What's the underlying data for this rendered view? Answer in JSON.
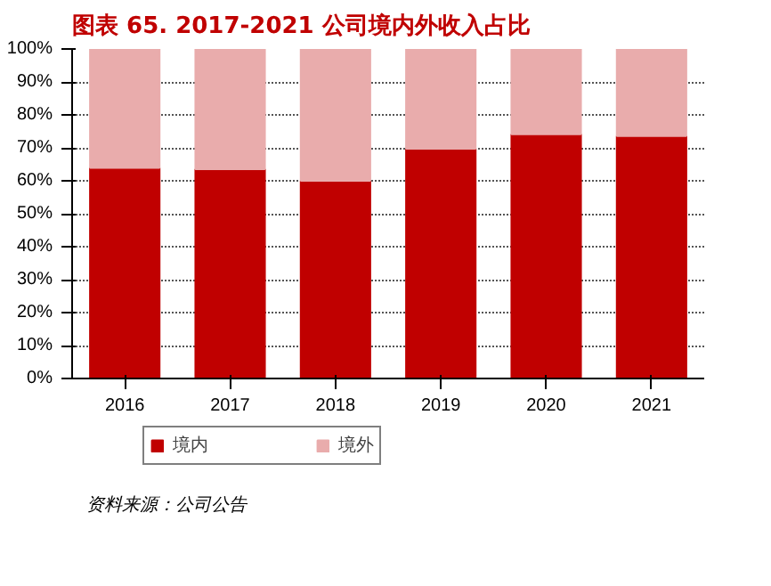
{
  "chart_data": {
    "type": "bar",
    "stacked": true,
    "title": "图表 65. 2017-2021 公司境内外收入占比",
    "categories": [
      "2016",
      "2017",
      "2018",
      "2019",
      "2020",
      "2021"
    ],
    "series": [
      {
        "name": "境内",
        "color": "#c00000",
        "values": [
          63.9,
          63.5,
          60.0,
          69.7,
          74.1,
          73.6
        ]
      },
      {
        "name": "境外",
        "color": "#e9acac",
        "values": [
          36.1,
          36.5,
          40.0,
          30.3,
          25.9,
          26.4
        ]
      }
    ],
    "ylim": [
      0,
      100
    ],
    "yticks": [
      {
        "value": 0,
        "label": "0%"
      },
      {
        "value": 10,
        "label": "10%"
      },
      {
        "value": 20,
        "label": "20%"
      },
      {
        "value": 30,
        "label": "30%"
      },
      {
        "value": 40,
        "label": "40%"
      },
      {
        "value": 50,
        "label": "50%"
      },
      {
        "value": 60,
        "label": "60%"
      },
      {
        "value": 70,
        "label": "70%"
      },
      {
        "value": 80,
        "label": "80%"
      },
      {
        "value": 90,
        "label": "90%"
      },
      {
        "value": 100,
        "label": "100%"
      }
    ],
    "grid": "y",
    "legend": "bottom",
    "annotations": [
      "资料来源：公司公告"
    ]
  }
}
